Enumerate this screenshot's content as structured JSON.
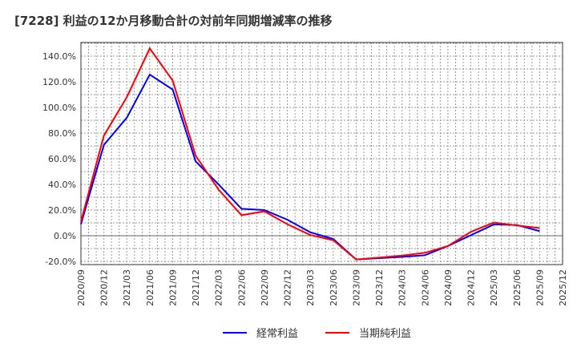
{
  "chart_data": {
    "type": "line",
    "title": "[7228]  利益の12か月移動合計の対前年同期増減率の推移",
    "xlabel": "",
    "ylabel": "",
    "ylim": [
      -22,
      150
    ],
    "yticks": [
      -20,
      0,
      20,
      40,
      60,
      80,
      100,
      120,
      140
    ],
    "ytick_labels": [
      "-20.0%",
      "0.0%",
      "20.0%",
      "40.0%",
      "60.0%",
      "80.0%",
      "100.0%",
      "120.0%",
      "140.0%"
    ],
    "x": [
      "2020/09",
      "2020/12",
      "2021/03",
      "2021/06",
      "2021/09",
      "2021/12",
      "2022/03",
      "2022/06",
      "2022/09",
      "2022/12",
      "2023/03",
      "2023/06",
      "2023/09",
      "2023/12",
      "2024/03",
      "2024/06",
      "2024/09",
      "2024/12",
      "2025/03",
      "2025/06",
      "2025/09",
      "2025/12"
    ],
    "grid": true,
    "legend": "bottom",
    "series": [
      {
        "name": "経常利益",
        "color": "#0000ff",
        "values": [
          9,
          70.8,
          92,
          125.6,
          114,
          58,
          40,
          21,
          20,
          12.5,
          2.7,
          -2.5,
          -18.5,
          -17.5,
          -16.5,
          -15.2,
          -8,
          0.4,
          8.8,
          8.4,
          3.6,
          null
        ]
      },
      {
        "name": "当期純利益",
        "color": "#ff0000",
        "values": [
          11,
          78,
          108,
          146,
          121,
          62.5,
          36,
          16,
          19,
          9,
          0.6,
          -3.5,
          -18.5,
          -17,
          -15.5,
          -13.3,
          -8,
          3,
          10.3,
          8,
          6,
          null
        ]
      }
    ]
  }
}
